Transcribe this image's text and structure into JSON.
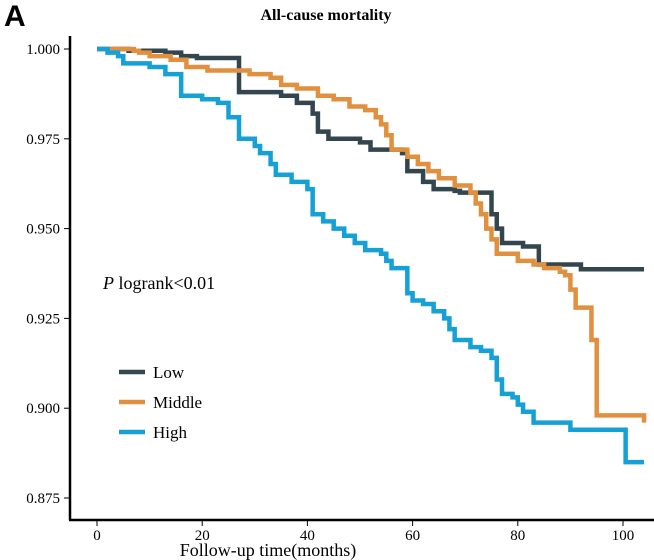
{
  "panel_label": "A",
  "chart_data": {
    "type": "line",
    "step": true,
    "title": "All-cause mortality",
    "xlabel": "Follow-up time(months)",
    "ylabel": "",
    "xlim": [
      0,
      104
    ],
    "ylim": [
      0.875,
      1.0
    ],
    "xticks": [
      0,
      20,
      40,
      60,
      80,
      100
    ],
    "yticks": [
      "0.875",
      "0.900",
      "0.925",
      "0.950",
      "0.975",
      "1.000"
    ],
    "annotation": {
      "italic": "P",
      "text": " logrank<0.01"
    },
    "legend_position": "left-center",
    "grid": false,
    "series": [
      {
        "name": "Low",
        "color": "#34464d",
        "points": [
          [
            0,
            1.0
          ],
          [
            6,
            0.9995
          ],
          [
            13,
            0.999
          ],
          [
            16,
            0.998
          ],
          [
            19,
            0.9975
          ],
          [
            27,
            0.988
          ],
          [
            35,
            0.987
          ],
          [
            38,
            0.985
          ],
          [
            41,
            0.982
          ],
          [
            42,
            0.977
          ],
          [
            44,
            0.975
          ],
          [
            50,
            0.974
          ],
          [
            52,
            0.972
          ],
          [
            58,
            0.971
          ],
          [
            59,
            0.966
          ],
          [
            62,
            0.963
          ],
          [
            64,
            0.961
          ],
          [
            68,
            0.9605
          ],
          [
            69,
            0.96
          ],
          [
            75,
            0.954
          ],
          [
            76,
            0.95
          ],
          [
            77,
            0.946
          ],
          [
            81,
            0.945
          ],
          [
            84,
            0.94
          ],
          [
            92,
            0.9387
          ],
          [
            104,
            0.9387
          ]
        ]
      },
      {
        "name": "Middle",
        "color": "#e0903f",
        "points": [
          [
            0,
            1.0
          ],
          [
            7,
            0.9995
          ],
          [
            8,
            0.999
          ],
          [
            10,
            0.998
          ],
          [
            14,
            0.997
          ],
          [
            17,
            0.995
          ],
          [
            21,
            0.994
          ],
          [
            29,
            0.993
          ],
          [
            33,
            0.992
          ],
          [
            35,
            0.99
          ],
          [
            38,
            0.989
          ],
          [
            42,
            0.987
          ],
          [
            45,
            0.986
          ],
          [
            48,
            0.984
          ],
          [
            51,
            0.983
          ],
          [
            53,
            0.981
          ],
          [
            54,
            0.979
          ],
          [
            55,
            0.976
          ],
          [
            56,
            0.972
          ],
          [
            59,
            0.97
          ],
          [
            61,
            0.968
          ],
          [
            63,
            0.966
          ],
          [
            65,
            0.964
          ],
          [
            68,
            0.962
          ],
          [
            71,
            0.96
          ],
          [
            72,
            0.957
          ],
          [
            73,
            0.954
          ],
          [
            74,
            0.95
          ],
          [
            75,
            0.947
          ],
          [
            76,
            0.943
          ],
          [
            80,
            0.941
          ],
          [
            83,
            0.94
          ],
          [
            85,
            0.939
          ],
          [
            88,
            0.938
          ],
          [
            89,
            0.937
          ],
          [
            90,
            0.933
          ],
          [
            91,
            0.928
          ],
          [
            94,
            0.919
          ],
          [
            95,
            0.898
          ],
          [
            104,
            0.898
          ],
          [
            104,
            0.896
          ]
        ]
      },
      {
        "name": "High",
        "color": "#15a1d6",
        "points": [
          [
            0,
            1.0
          ],
          [
            2,
            0.999
          ],
          [
            4,
            0.998
          ],
          [
            5,
            0.996
          ],
          [
            10,
            0.995
          ],
          [
            13,
            0.993
          ],
          [
            16,
            0.987
          ],
          [
            20,
            0.986
          ],
          [
            23,
            0.985
          ],
          [
            25,
            0.981
          ],
          [
            27,
            0.975
          ],
          [
            30,
            0.973
          ],
          [
            31,
            0.971
          ],
          [
            33,
            0.968
          ],
          [
            34,
            0.965
          ],
          [
            37,
            0.963
          ],
          [
            40,
            0.961
          ],
          [
            41,
            0.954
          ],
          [
            43,
            0.952
          ],
          [
            45,
            0.95
          ],
          [
            47,
            0.948
          ],
          [
            49,
            0.946
          ],
          [
            51,
            0.944
          ],
          [
            54,
            0.943
          ],
          [
            55,
            0.941
          ],
          [
            56,
            0.939
          ],
          [
            59,
            0.932
          ],
          [
            60,
            0.93
          ],
          [
            62,
            0.929
          ],
          [
            64,
            0.927
          ],
          [
            66,
            0.925
          ],
          [
            67,
            0.922
          ],
          [
            68,
            0.919
          ],
          [
            71,
            0.917
          ],
          [
            73,
            0.916
          ],
          [
            75,
            0.914
          ],
          [
            76,
            0.908
          ],
          [
            77,
            0.904
          ],
          [
            79,
            0.903
          ],
          [
            80,
            0.901
          ],
          [
            81,
            0.899
          ],
          [
            83,
            0.896
          ],
          [
            90,
            0.894
          ],
          [
            100.5,
            0.885
          ],
          [
            104,
            0.885
          ]
        ]
      }
    ]
  }
}
